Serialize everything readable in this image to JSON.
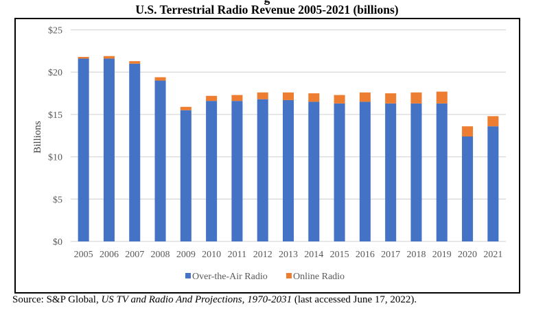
{
  "header": {
    "title_partial": "g",
    "title": "U.S. Terrestrial Radio Revenue 2005-2021 (billions)"
  },
  "source": {
    "prefix": "Source: S&P Global, ",
    "italic": "US TV and Radio And Projections, 1970-2031",
    "suffix": " (last accessed June 17, 2022)."
  },
  "chart_data": {
    "type": "bar",
    "stacked": true,
    "title": "U.S. Terrestrial Radio Revenue 2005-2021 (billions)",
    "xlabel": "",
    "ylabel": "Billions",
    "ylim": [
      0,
      25
    ],
    "yticks": [
      0,
      5,
      10,
      15,
      20,
      25
    ],
    "ytick_labels": [
      "$0",
      "$5",
      "$10",
      "$15",
      "$20",
      "$25"
    ],
    "grid": true,
    "legend_position": "bottom",
    "categories": [
      "2005",
      "2006",
      "2007",
      "2008",
      "2009",
      "2010",
      "2011",
      "2012",
      "2013",
      "2014",
      "2015",
      "2016",
      "2017",
      "2018",
      "2019",
      "2020",
      "2021"
    ],
    "series": [
      {
        "name": "Over-the-Air Radio",
        "color": "#4472C4",
        "values": [
          21.6,
          21.6,
          21.0,
          19.0,
          15.5,
          16.6,
          16.6,
          16.8,
          16.7,
          16.5,
          16.3,
          16.5,
          16.3,
          16.3,
          16.3,
          12.4,
          13.6
        ]
      },
      {
        "name": "Online Radio",
        "color": "#ED7D31",
        "values": [
          0.2,
          0.3,
          0.3,
          0.4,
          0.4,
          0.6,
          0.7,
          0.8,
          0.9,
          1.0,
          1.0,
          1.1,
          1.2,
          1.3,
          1.4,
          1.2,
          1.2
        ]
      }
    ]
  }
}
